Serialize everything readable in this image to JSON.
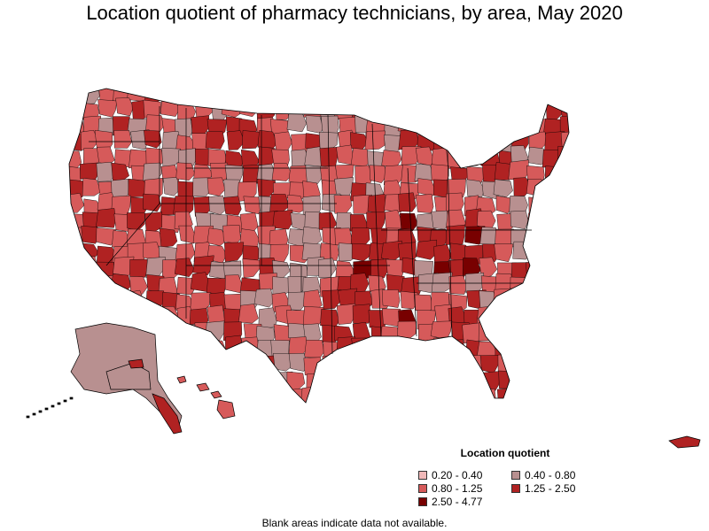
{
  "title": "Location quotient of pharmacy technicians, by area, May 2020",
  "legend": {
    "title": "Location quotient",
    "items": [
      {
        "label": "0.20 - 0.40",
        "color": "#f0b8b8"
      },
      {
        "label": "0.40 - 0.80",
        "color": "#b89090"
      },
      {
        "label": "0.80 - 1.25",
        "color": "#d65a5a"
      },
      {
        "label": "1.25 - 2.50",
        "color": "#b02222"
      },
      {
        "label": "2.50 - 4.77",
        "color": "#780000"
      }
    ]
  },
  "footnote": "Blank areas indicate data not available."
}
